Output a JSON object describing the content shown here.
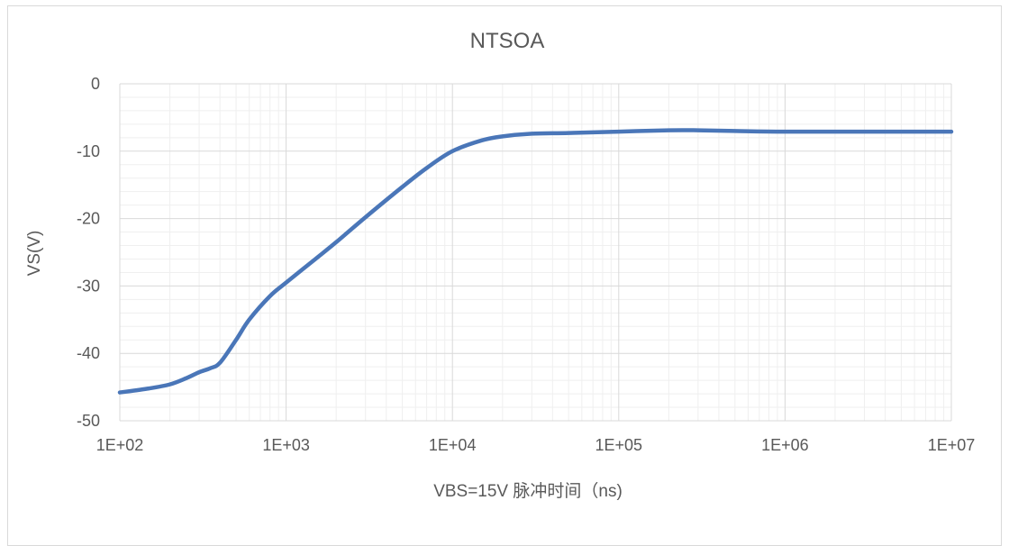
{
  "chart_data": {
    "type": "line",
    "title": "NTSOA",
    "xlabel": "VBS=15V 脉冲时间（ns)",
    "ylabel": "VS(V)",
    "x_scale": "log",
    "xlim": [
      100,
      10000000
    ],
    "ylim": [
      -50,
      0
    ],
    "x_ticks": [
      100,
      1000,
      10000,
      100000,
      1000000,
      10000000
    ],
    "x_tick_labels": [
      "1E+02",
      "1E+03",
      "1E+04",
      "1E+05",
      "1E+06",
      "1E+07"
    ],
    "y_ticks": [
      0,
      -10,
      -20,
      -30,
      -40,
      -50
    ],
    "y_tick_labels": [
      "0",
      "-10",
      "-20",
      "-30",
      "-40",
      "-50"
    ],
    "grid": true,
    "legend": "none",
    "series": [
      {
        "color": "#4a76b8",
        "x": [
          100,
          150,
          200,
          250,
          300,
          350,
          400,
          500,
          600,
          800,
          1000,
          1500,
          2000,
          3000,
          5000,
          7000,
          10000,
          15000,
          20000,
          30000,
          50000,
          100000,
          200000,
          300000,
          500000,
          1000000,
          3000000,
          10000000
        ],
        "y": [
          -45.8,
          -45.2,
          -44.6,
          -43.7,
          -42.8,
          -42.2,
          -41.4,
          -38.0,
          -35.0,
          -31.5,
          -29.5,
          -26.0,
          -23.5,
          -19.8,
          -15.3,
          -12.5,
          -10.0,
          -8.4,
          -7.8,
          -7.4,
          -7.3,
          -7.1,
          -6.9,
          -6.9,
          -7.0,
          -7.1,
          -7.1,
          -7.1
        ]
      }
    ]
  }
}
